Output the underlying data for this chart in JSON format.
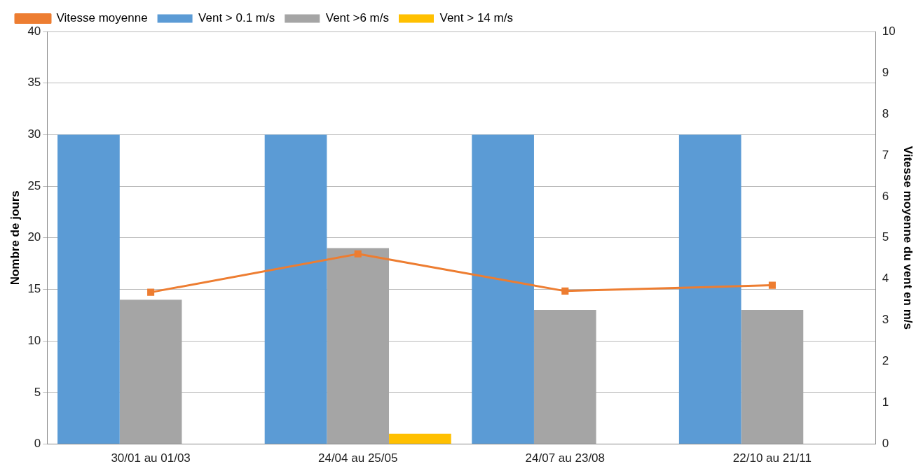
{
  "chart_data": {
    "type": "bar",
    "categories": [
      "30/01 au 01/03",
      "24/04 au 25/05",
      "24/07 au 23/08",
      "22/10 au 21/11"
    ],
    "series": [
      {
        "name": "Vent > 0.1 m/s",
        "color": "#5b9bd5",
        "values": [
          30,
          30,
          30,
          30
        ]
      },
      {
        "name": "Vent >6 m/s",
        "color": "#a5a5a5",
        "values": [
          14,
          19,
          13,
          13
        ]
      },
      {
        "name": "Vent > 14 m/s",
        "color": "#ffc000",
        "values": [
          0,
          1,
          0,
          0
        ]
      },
      {
        "name": "Vitesse moyenne",
        "color": "#ed7d31",
        "type": "line",
        "axis": "y2",
        "marker": "square",
        "values": [
          3.68,
          4.61,
          3.71,
          3.85
        ]
      }
    ],
    "ylabel": "Nombre de jours",
    "y2label": "Vitesse moyenne du vent en m/s",
    "ylim": [
      0,
      40
    ],
    "yticks": [
      0,
      5,
      10,
      15,
      20,
      25,
      30,
      35,
      40
    ],
    "y2lim": [
      0,
      10
    ],
    "y2ticks": [
      0,
      1,
      2,
      3,
      4,
      5,
      6,
      7,
      8,
      9,
      10
    ],
    "grid": "y",
    "legend": "top left"
  }
}
